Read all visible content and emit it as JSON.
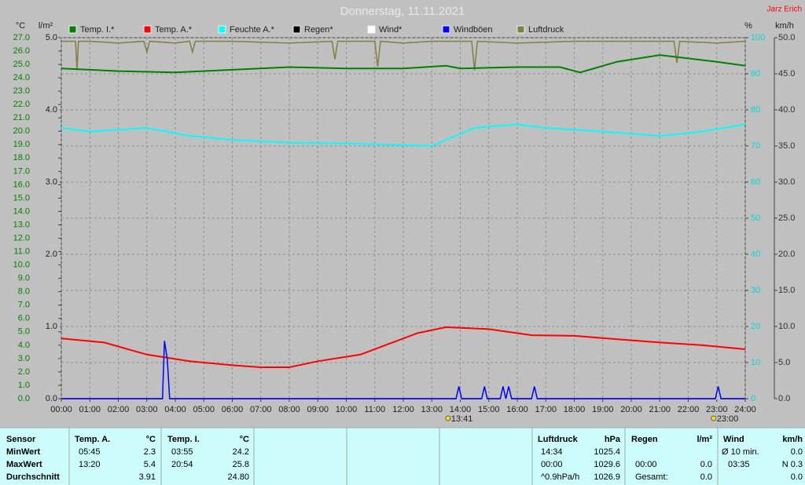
{
  "header": {
    "author": "Jarz Erich"
  },
  "chart_data": {
    "type": "line",
    "title": "Donnerstag, 11.11.2021",
    "y_label": "°C",
    "rain_label": "l/m²",
    "y2_label": "%",
    "wind_label": "km/h",
    "xlim": [
      0,
      24
    ],
    "xticks": [
      {
        "value": 0,
        "label": "00:00"
      },
      {
        "value": 1,
        "label": "01:00"
      },
      {
        "value": 2,
        "label": "02:00"
      },
      {
        "value": 3,
        "label": "03:00"
      },
      {
        "value": 4,
        "label": "04:00"
      },
      {
        "value": 5,
        "label": "05:00"
      },
      {
        "value": 6,
        "label": "06:00"
      },
      {
        "value": 7,
        "label": "07:00"
      },
      {
        "value": 8,
        "label": "08:00"
      },
      {
        "value": 9,
        "label": "09:00"
      },
      {
        "value": 10,
        "label": "10:00"
      },
      {
        "value": 11,
        "label": "11:00"
      },
      {
        "value": 12,
        "label": "12:00"
      },
      {
        "value": 13,
        "label": "13:00"
      },
      {
        "value": 14,
        "label": "14:00"
      },
      {
        "value": 15,
        "label": "15:00"
      },
      {
        "value": 16,
        "label": "16:00"
      },
      {
        "value": 17,
        "label": "17:00"
      },
      {
        "value": 18,
        "label": "18:00"
      },
      {
        "value": 19,
        "label": "19:00"
      },
      {
        "value": 20,
        "label": "20:00"
      },
      {
        "value": 21,
        "label": "21:00"
      },
      {
        "value": 22,
        "label": "22:00"
      },
      {
        "value": 23,
        "label": "23:00"
      },
      {
        "value": 24,
        "label": "24:00"
      }
    ],
    "ylim": [
      0,
      27
    ],
    "yticks": [
      {
        "value": 0,
        "label": "0.0"
      },
      {
        "value": 1,
        "label": "1.0"
      },
      {
        "value": 2,
        "label": "2.0"
      },
      {
        "value": 3,
        "label": "3.0"
      },
      {
        "value": 4,
        "label": "4.0"
      },
      {
        "value": 5,
        "label": "5.0"
      },
      {
        "value": 6,
        "label": "6.0"
      },
      {
        "value": 7,
        "label": "7.0"
      },
      {
        "value": 8,
        "label": "8.0"
      },
      {
        "value": 9,
        "label": "9.0"
      },
      {
        "value": 10,
        "label": "10.0"
      },
      {
        "value": 11,
        "label": "11.0"
      },
      {
        "value": 12,
        "label": "12.0"
      },
      {
        "value": 13,
        "label": "13.0"
      },
      {
        "value": 14,
        "label": "14.0"
      },
      {
        "value": 15,
        "label": "15.0"
      },
      {
        "value": 16,
        "label": "16.0"
      },
      {
        "value": 17,
        "label": "17.0"
      },
      {
        "value": 18,
        "label": "18.0"
      },
      {
        "value": 19,
        "label": "19.0"
      },
      {
        "value": 20,
        "label": "20.0"
      },
      {
        "value": 21,
        "label": "21.0"
      },
      {
        "value": 22,
        "label": "22.0"
      },
      {
        "value": 23,
        "label": "23.0"
      },
      {
        "value": 24,
        "label": "24.0"
      },
      {
        "value": 25,
        "label": "25.0"
      },
      {
        "value": 26,
        "label": "26.0"
      },
      {
        "value": 27,
        "label": "27.0"
      }
    ],
    "rain_ylim": [
      0,
      5
    ],
    "rain_yticks": [
      {
        "value": 0,
        "label": "0.0"
      },
      {
        "value": 1,
        "label": "1.0"
      },
      {
        "value": 2,
        "label": "2.0"
      },
      {
        "value": 3,
        "label": "3.0"
      },
      {
        "value": 4,
        "label": "4.0"
      },
      {
        "value": 5,
        "label": "5.0"
      }
    ],
    "y2lim": [
      0,
      100
    ],
    "y2ticks": [
      0,
      10,
      20,
      30,
      40,
      50,
      60,
      70,
      80,
      90,
      100
    ],
    "wind_ylim": [
      0,
      50
    ],
    "wind_yticks": [
      {
        "value": 0,
        "label": "0.0"
      },
      {
        "value": 5,
        "label": "5.0"
      },
      {
        "value": 10,
        "label": "10.0"
      },
      {
        "value": 15,
        "label": "15.0"
      },
      {
        "value": 20,
        "label": "20.0"
      },
      {
        "value": 25,
        "label": "25.0"
      },
      {
        "value": 30,
        "label": "30.0"
      },
      {
        "value": 35,
        "label": "35.0"
      },
      {
        "value": 40,
        "label": "40.0"
      },
      {
        "value": 45,
        "label": "45.0"
      },
      {
        "value": 50,
        "label": "50.0"
      }
    ],
    "grid": true,
    "series": [
      {
        "name": "Temp. I.*",
        "color": "#008000",
        "axis": "y",
        "x": [
          0,
          2,
          4,
          6,
          8,
          10,
          12,
          13.5,
          14,
          16,
          17.5,
          18.2,
          19.5,
          21,
          23,
          24
        ],
        "values": [
          24.7,
          24.5,
          24.4,
          24.6,
          24.8,
          24.7,
          24.7,
          24.9,
          24.7,
          24.8,
          24.8,
          24.4,
          25.2,
          25.7,
          25.2,
          24.9
        ]
      },
      {
        "name": "Temp. A.*",
        "color": "#ff0000",
        "axis": "y",
        "x": [
          0,
          1.5,
          3,
          4.5,
          6,
          7,
          8,
          9,
          10.5,
          11.5,
          12.5,
          13.5,
          15,
          16.5,
          18,
          19.5,
          21,
          22.5,
          24
        ],
        "values": [
          4.5,
          4.2,
          3.3,
          2.8,
          2.5,
          2.35,
          2.35,
          2.8,
          3.3,
          4.1,
          4.9,
          5.35,
          5.2,
          4.75,
          4.7,
          4.45,
          4.2,
          4.0,
          3.7
        ]
      },
      {
        "name": "Feuchte A.*",
        "color": "#00ffff",
        "axis": "y2",
        "x": [
          0,
          1,
          3,
          4.5,
          6,
          8,
          10,
          13,
          14.5,
          16,
          17,
          19,
          21,
          22.5,
          24
        ],
        "values": [
          75,
          74,
          75,
          72.8,
          71.7,
          70.9,
          70.7,
          70,
          75,
          76,
          75,
          74,
          72.8,
          74,
          76
        ]
      },
      {
        "name": "Regen*",
        "color": "#000000",
        "axis": "rain",
        "x": [
          0,
          24
        ],
        "values": [
          0,
          0
        ]
      },
      {
        "name": "Wind*",
        "color": "#ffffff",
        "axis": "wind",
        "x": [
          0,
          24
        ],
        "values": [
          0,
          0
        ]
      },
      {
        "name": "Windböen",
        "color": "#0000ff",
        "axis": "wind",
        "x": [
          0,
          3.55,
          3.62,
          3.72,
          3.8,
          13.85,
          13.95,
          14.05,
          14.75,
          14.85,
          14.95,
          15.4,
          15.5,
          15.6,
          15.7,
          15.8,
          16.5,
          16.6,
          16.7,
          22.95,
          23.05,
          23.15,
          24
        ],
        "values": [
          0,
          0,
          8.0,
          5.5,
          0,
          0,
          1.7,
          0,
          0,
          1.7,
          0,
          0,
          1.7,
          0,
          1.7,
          0,
          0,
          1.7,
          0,
          0,
          1.7,
          0,
          0
        ]
      },
      {
        "name": "Luftdruck",
        "color": "#808040",
        "axis": "y2",
        "x": [
          0,
          0.5,
          0.55,
          0.6,
          1,
          2,
          2.9,
          3,
          3.1,
          4,
          4.5,
          4.6,
          4.7,
          6,
          8,
          9.5,
          9.6,
          9.7,
          10.5,
          11,
          11.1,
          11.2,
          12,
          13,
          14.4,
          14.5,
          14.6,
          16,
          18,
          20,
          21.5,
          21.6,
          21.7,
          23,
          24
        ],
        "values": [
          99,
          99,
          91,
          99,
          99,
          98.5,
          99,
          96,
          99,
          98.5,
          99,
          96,
          99,
          99,
          98.5,
          99,
          94,
          99,
          99,
          99,
          92,
          99,
          98.5,
          99,
          99,
          91,
          99,
          98.5,
          99,
          99,
          99,
          93,
          99,
          98.5,
          99
        ]
      }
    ],
    "annotations": [
      {
        "value": 13.68,
        "label": "13:41"
      },
      {
        "value": 23,
        "label": "23:00"
      }
    ]
  },
  "stats": {
    "row_labels": [
      "Sensor",
      "MinWert",
      "MaxWert",
      "Durchschnitt"
    ],
    "groups": [
      {
        "header": [
          "Temp. A.",
          "°C"
        ],
        "rows": [
          [
            "05:45",
            "2.3"
          ],
          [
            "13:20",
            "5.4"
          ],
          [
            null,
            "3.91"
          ]
        ]
      },
      {
        "header": [
          "Temp. I.",
          "°C"
        ],
        "rows": [
          [
            "03:55",
            "24.2"
          ],
          [
            "20:54",
            "25.8"
          ],
          [
            null,
            "24.80"
          ]
        ]
      },
      {
        "header": [
          "Luftdruck",
          "hPa"
        ],
        "rows": [
          [
            "14:34",
            "1025.4"
          ],
          [
            "00:00",
            "1029.6"
          ],
          [
            "^0.9hPa/h",
            "1026.9"
          ]
        ]
      },
      {
        "header": [
          "Regen",
          "l/m²"
        ],
        "rows": [
          [
            null,
            null
          ],
          [
            "00:00",
            "0.0"
          ],
          [
            "Gesamt:",
            "0.0"
          ]
        ]
      },
      {
        "header": [
          "Wind",
          "km/h"
        ],
        "rows": [
          [
            "Ø 10 min.",
            "0.0"
          ],
          [
            "03:35",
            "N 0.3"
          ],
          [
            null,
            "0.0"
          ]
        ]
      }
    ]
  }
}
